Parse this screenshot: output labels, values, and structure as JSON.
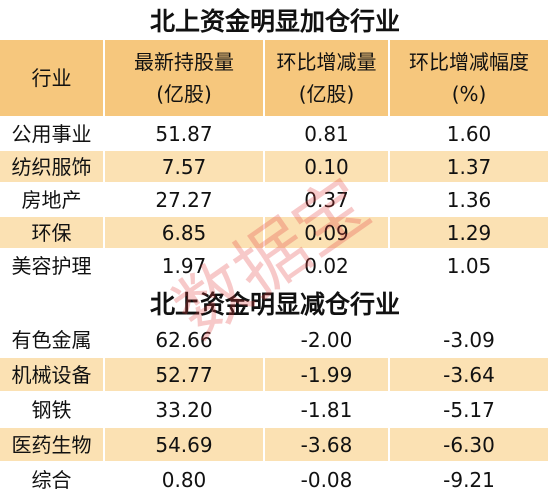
{
  "sections": [
    {
      "title": "北上资金明显加仓行业",
      "header": [
        [
          "行业"
        ],
        [
          "最新持股量",
          "(亿股)"
        ],
        [
          "环比增减量",
          "(亿股)"
        ],
        [
          "环比增减幅度",
          "(%)"
        ]
      ],
      "rows": [
        [
          "公用事业",
          "51.87",
          "0.81",
          "1.60"
        ],
        [
          "纺织服饰",
          "7.57",
          "0.10",
          "1.37"
        ],
        [
          "房地产",
          "27.27",
          "0.37",
          "1.36"
        ],
        [
          "环保",
          "6.85",
          "0.09",
          "1.29"
        ],
        [
          "美容护理",
          "1.97",
          "0.02",
          "1.05"
        ]
      ]
    },
    {
      "title": "北上资金明显减仓行业",
      "rows": [
        [
          "有色金属",
          "62.66",
          "-2.00",
          "-3.09"
        ],
        [
          "机械设备",
          "52.77",
          "-1.99",
          "-3.64"
        ],
        [
          "钢铁",
          "33.20",
          "-1.81",
          "-5.17"
        ],
        [
          "医药生物",
          "54.69",
          "-3.68",
          "-6.30"
        ],
        [
          "综合",
          "0.80",
          "-0.08",
          "-9.21"
        ]
      ]
    }
  ],
  "watermark": "数据宝"
}
